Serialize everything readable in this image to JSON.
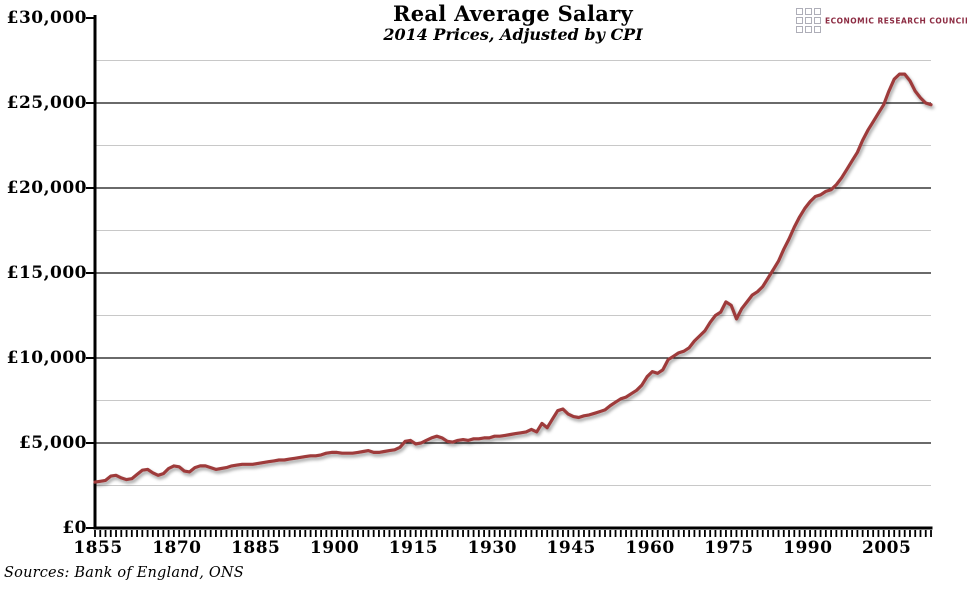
{
  "header": {
    "title": "Real Average Salary",
    "subtitle": "2014 Prices, Adjusted by CPI"
  },
  "logo": {
    "text": "ECONOMIC RESEARCH COUNCIL",
    "color": "#8C2B42",
    "grid_squares": 9
  },
  "footer": {
    "sources": "Sources: Bank of England, ONS"
  },
  "chart_data": {
    "type": "line",
    "title": "Real Average Salary",
    "subtitle": "2014 Prices, Adjusted by CPI",
    "xlabel": "",
    "ylabel": "",
    "ylim": [
      0,
      30000
    ],
    "y_major_interval": 5000,
    "y_minor_interval": 2500,
    "y_tick_labels": [
      "£0",
      "£5,000",
      "£10,000",
      "£15,000",
      "£20,000",
      "£25,000",
      "£30,000"
    ],
    "x_start": 1855,
    "x_end": 2014,
    "x_tick_label_interval": 15,
    "x_tick_labels": [
      "1855",
      "1870",
      "1885",
      "1900",
      "1915",
      "1930",
      "1945",
      "1960",
      "1975",
      "1990",
      "2005"
    ],
    "grid": "major-black-minor-gray",
    "legend": "none",
    "line_color": "#9E3B3B",
    "major_grid_color": "#111111",
    "minor_grid_color": "#c8c8c8",
    "series": [
      {
        "name": "Real Average Salary (2014 prices, GBP)",
        "x_start_year": 1855,
        "values": [
          2700,
          2750,
          2800,
          3050,
          3100,
          2950,
          2850,
          2900,
          3150,
          3400,
          3450,
          3250,
          3100,
          3200,
          3500,
          3650,
          3600,
          3350,
          3300,
          3550,
          3650,
          3650,
          3550,
          3450,
          3500,
          3550,
          3650,
          3700,
          3750,
          3750,
          3750,
          3800,
          3850,
          3900,
          3950,
          4000,
          4000,
          4050,
          4100,
          4150,
          4200,
          4250,
          4250,
          4300,
          4400,
          4450,
          4450,
          4400,
          4400,
          4400,
          4450,
          4500,
          4550,
          4450,
          4450,
          4500,
          4550,
          4600,
          4750,
          5100,
          5150,
          4950,
          5000,
          5150,
          5300,
          5400,
          5300,
          5100,
          5050,
          5150,
          5200,
          5150,
          5250,
          5250,
          5300,
          5300,
          5400,
          5400,
          5450,
          5500,
          5550,
          5600,
          5650,
          5800,
          5650,
          6150,
          5900,
          6400,
          6900,
          7000,
          6700,
          6550,
          6500,
          6600,
          6650,
          6750,
          6850,
          6950,
          7200,
          7400,
          7600,
          7700,
          7900,
          8100,
          8400,
          8900,
          9200,
          9100,
          9300,
          9900,
          10100,
          10300,
          10400,
          10600,
          11000,
          11300,
          11600,
          12100,
          12500,
          12700,
          13300,
          13100,
          12300,
          12900,
          13300,
          13700,
          13900,
          14200,
          14700,
          15200,
          15700,
          16400,
          17000,
          17700,
          18300,
          18800,
          19200,
          19500,
          19600,
          19800,
          19900,
          20200,
          20600,
          21100,
          21600,
          22100,
          22800,
          23400,
          23900,
          24400,
          24900,
          25700,
          26400,
          26700,
          26700,
          26300,
          25700,
          25300,
          25000,
          24900
        ]
      }
    ],
    "sources": "Sources: Bank of England, ONS"
  }
}
